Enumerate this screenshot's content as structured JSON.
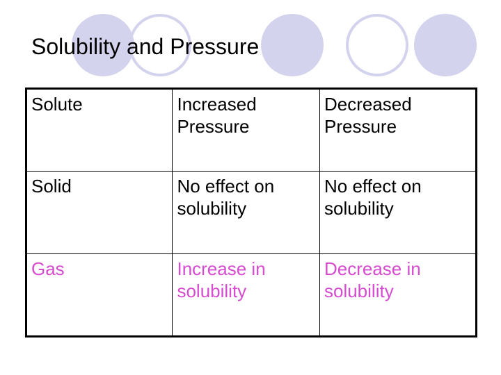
{
  "slide": {
    "title": "Solubility and Pressure"
  },
  "table": {
    "header": {
      "solute": "Solute",
      "increased": "Increased Pressure",
      "decreased": "Decreased Pressure"
    },
    "rows": [
      {
        "solute": "Solid",
        "increased": "No effect on solubility",
        "decreased": "No effect on solubility"
      },
      {
        "solute": "Gas",
        "increased": "Increase in solubility",
        "decreased": "Decrease in solubility"
      }
    ]
  },
  "colors": {
    "accent_circle": "#d4d3ee",
    "highlight_text": "#d64bd0"
  }
}
